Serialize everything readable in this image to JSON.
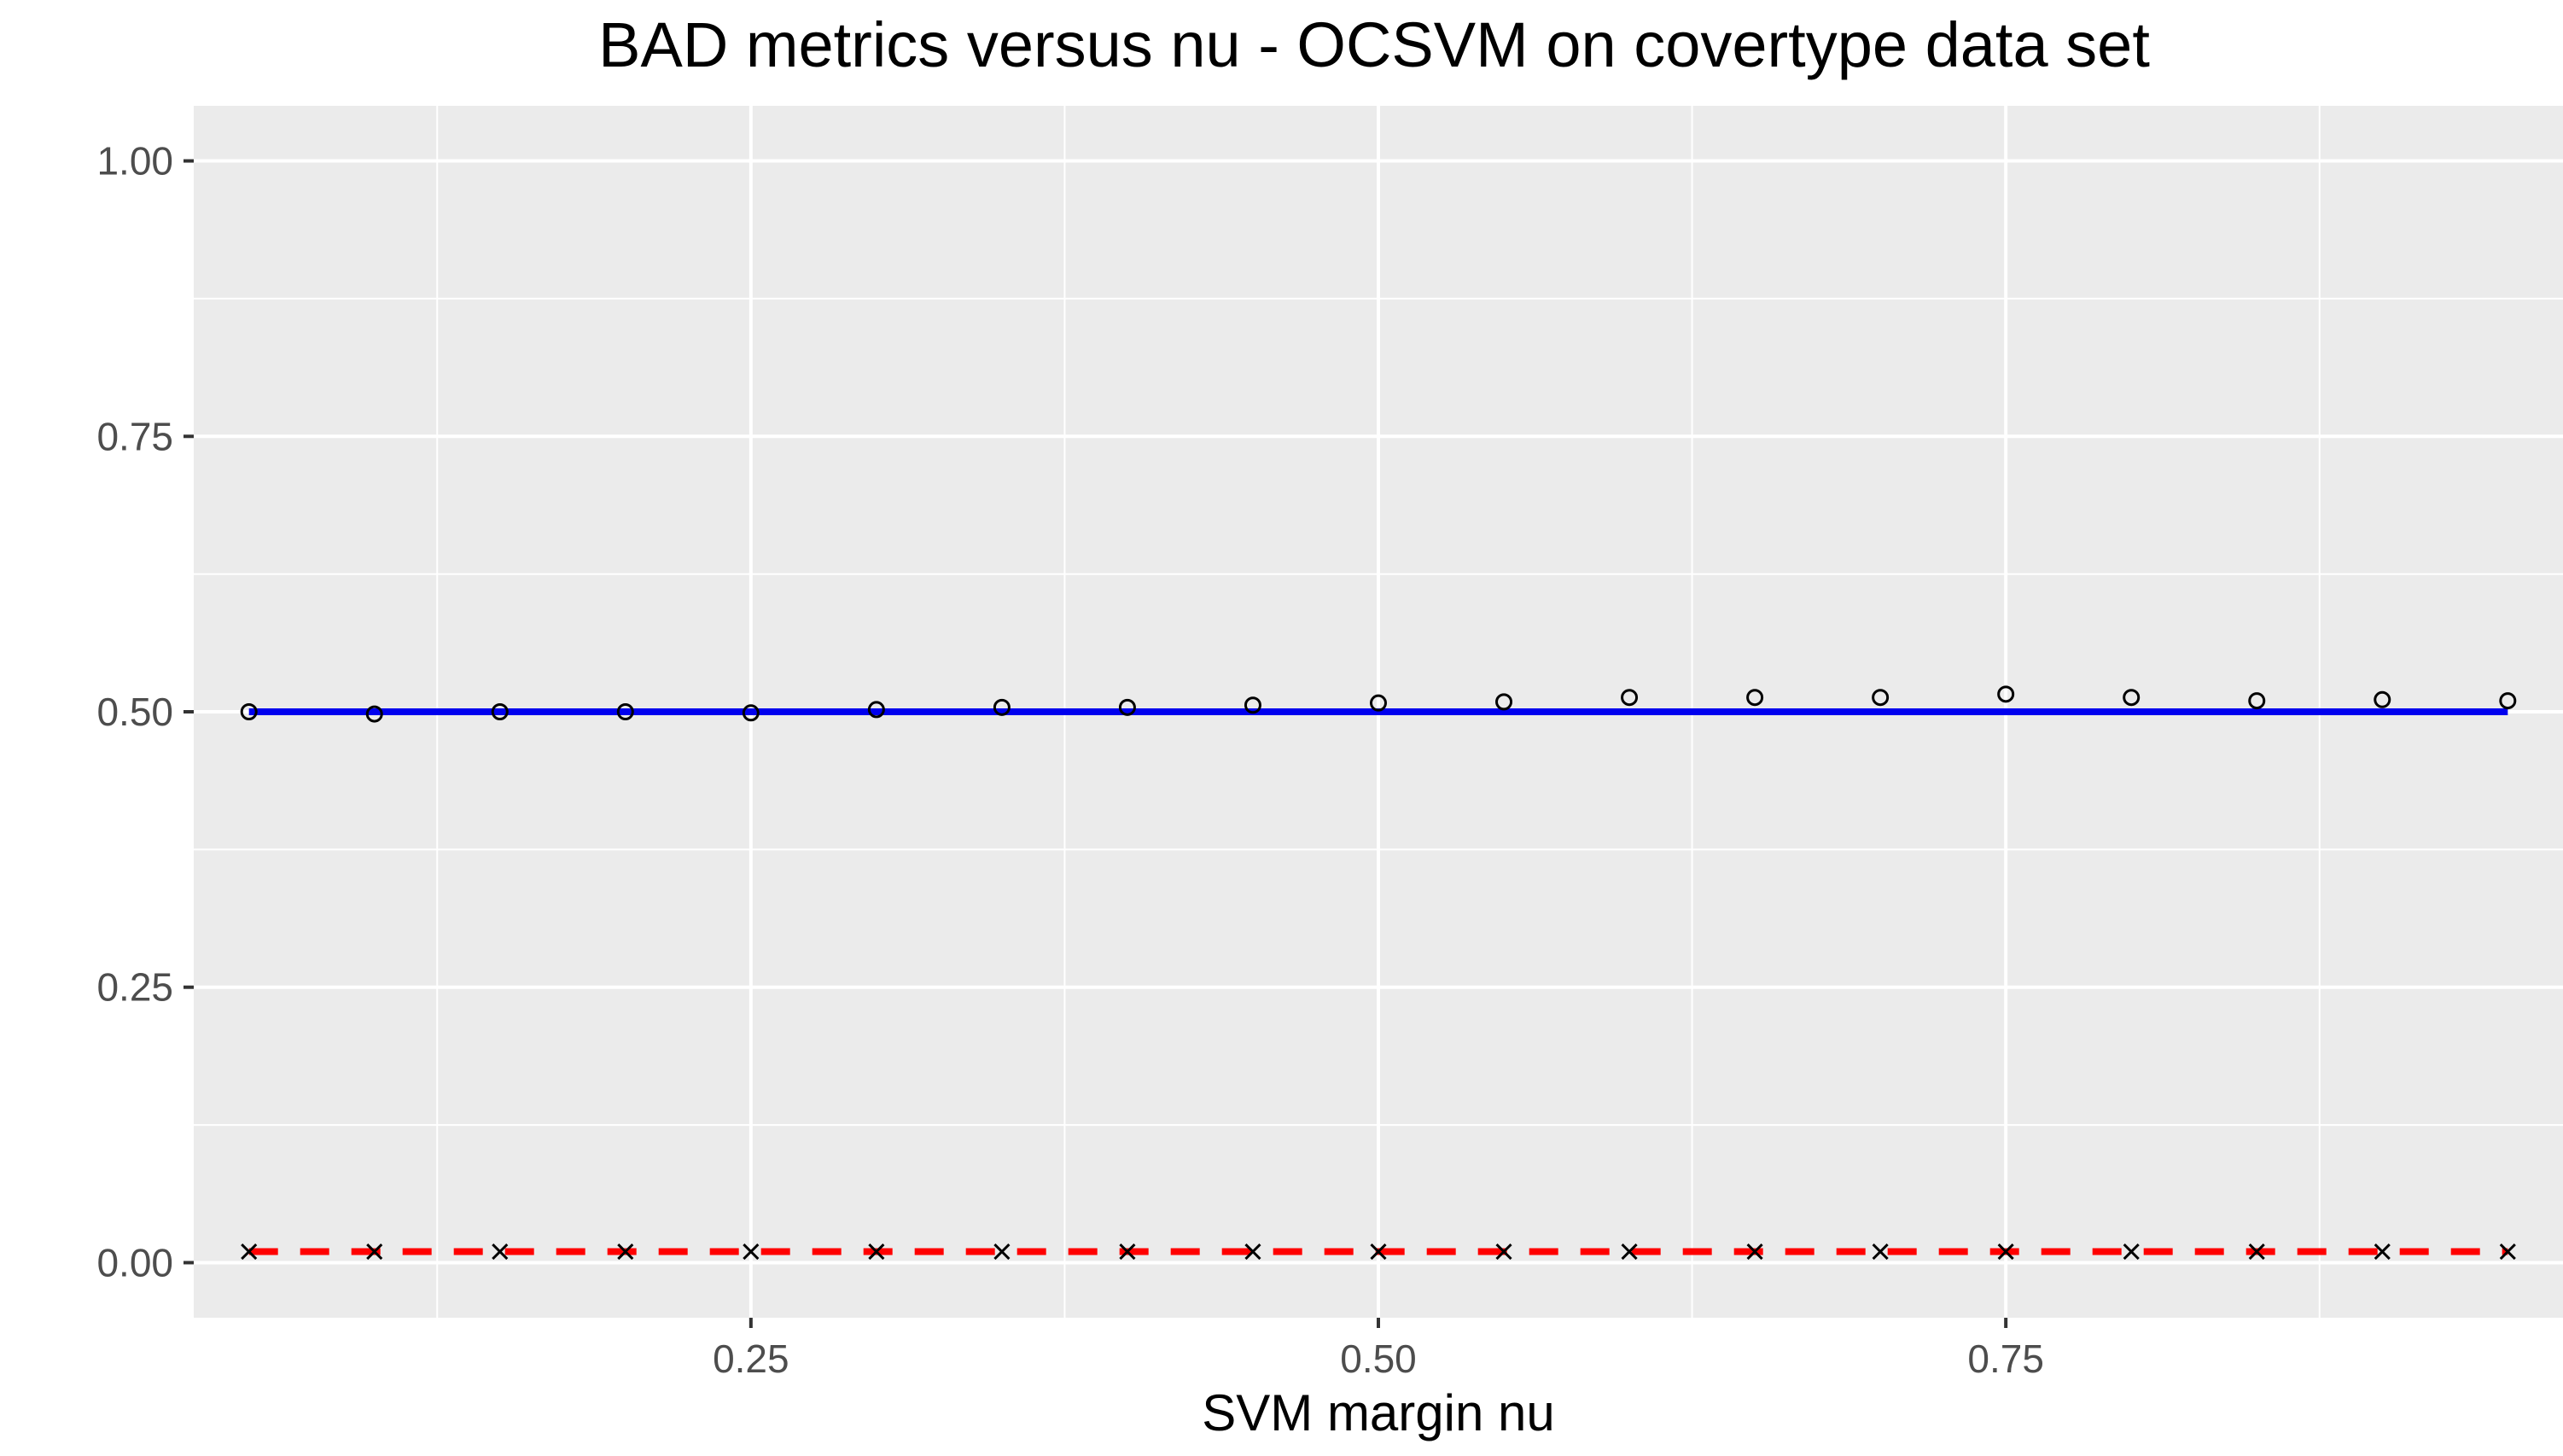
{
  "chart_data": {
    "type": "line",
    "title": "BAD metrics versus nu - OCSVM on covertype data set",
    "xlabel": "SVM margin nu",
    "ylabel": "",
    "xlim": [
      0.028,
      0.972
    ],
    "ylim": [
      -0.05,
      1.05
    ],
    "x_ticks": [
      0.25,
      0.5,
      0.75
    ],
    "x_tick_labels": [
      "0.25",
      "0.50",
      "0.75"
    ],
    "x_minor_ticks": [
      0.125,
      0.375,
      0.625,
      0.875
    ],
    "y_ticks": [
      0,
      0.25,
      0.5,
      0.75,
      1
    ],
    "y_tick_labels": [
      "0.00",
      "0.25",
      "0.50",
      "0.75",
      "1.00"
    ],
    "y_minor_ticks": [
      0.125,
      0.375,
      0.625,
      0.875
    ],
    "grid": true,
    "legend": "none",
    "colors": {
      "panel": "#ebebeb",
      "grid": "#ffffff",
      "tick": "#333333",
      "line1": "#0000ee",
      "line2": "#ff0000",
      "points": "#000000"
    },
    "x": [
      0.05,
      0.1,
      0.15,
      0.2,
      0.25,
      0.3,
      0.35,
      0.4,
      0.45,
      0.5,
      0.55,
      0.6,
      0.65,
      0.7,
      0.75,
      0.8,
      0.85,
      0.9,
      0.95
    ],
    "lines": [
      {
        "style": "solid",
        "color": "#0000ee",
        "x": [
          0.05,
          0.95
        ],
        "y": [
          0.5,
          0.5
        ]
      },
      {
        "style": "dashed",
        "color": "#ff0000",
        "x": [
          0.05,
          0.95
        ],
        "y": [
          0.01,
          0.01
        ]
      }
    ],
    "point_series": [
      {
        "marker": "circle",
        "y": [
          0.5,
          0.498,
          0.5,
          0.5,
          0.499,
          0.502,
          0.504,
          0.504,
          0.506,
          0.508,
          0.509,
          0.513,
          0.513,
          0.513,
          0.516,
          0.513,
          0.51,
          0.511,
          0.51
        ]
      },
      {
        "marker": "cross",
        "y": [
          0.01,
          0.01,
          0.01,
          0.01,
          0.01,
          0.01,
          0.01,
          0.01,
          0.01,
          0.01,
          0.01,
          0.01,
          0.01,
          0.01,
          0.01,
          0.01,
          0.01,
          0.01,
          0.01
        ]
      }
    ]
  }
}
